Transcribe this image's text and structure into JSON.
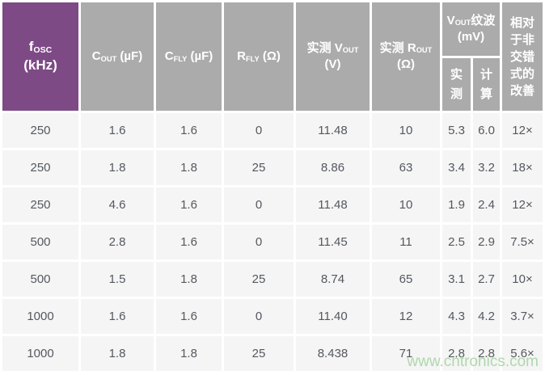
{
  "chart_data": {
    "type": "table",
    "columns": [
      "fOSC (kHz)",
      "COUT (µF)",
      "CFLY (µF)",
      "RFLY (Ω)",
      "实测 VOUT (V)",
      "实测 ROUT (Ω)",
      "VOUT纹波 (mV) 实测",
      "VOUT纹波 (mV) 计算",
      "相对于非交错式的改善"
    ],
    "rows": [
      [
        "250",
        "1.6",
        "1.6",
        "0",
        "11.48",
        "10",
        "5.3",
        "6.0",
        "12×"
      ],
      [
        "250",
        "1.8",
        "1.8",
        "25",
        "8.86",
        "63",
        "3.4",
        "3.2",
        "18×"
      ],
      [
        "250",
        "4.6",
        "1.6",
        "0",
        "11.48",
        "10",
        "1.9",
        "2.4",
        "12×"
      ],
      [
        "500",
        "2.8",
        "1.6",
        "0",
        "11.45",
        "11",
        "2.5",
        "2.9",
        "7.5×"
      ],
      [
        "500",
        "1.5",
        "1.8",
        "25",
        "8.74",
        "65",
        "3.1",
        "2.7",
        "10×"
      ],
      [
        "1000",
        "1.6",
        "1.6",
        "0",
        "11.40",
        "12",
        "4.3",
        "4.2",
        "3.7×"
      ],
      [
        "1000",
        "1.8",
        "1.8",
        "25",
        "8.438",
        "71",
        "2.8",
        "2.8",
        "5.6×"
      ]
    ]
  },
  "header": {
    "fosc": {
      "base": "f",
      "sub": "OSC",
      "unit": "(kHz)"
    },
    "cout": {
      "base": "C",
      "sub": "OUT",
      "unit": " (µF)"
    },
    "cfly": {
      "base": "C",
      "sub": "FLY",
      "unit": " (µF)"
    },
    "rfly": {
      "base": "R",
      "sub": "FLY",
      "unit": " (Ω)"
    },
    "vout_meas": {
      "prefix": "实测 V",
      "sub": "OUT",
      "unit": "(V)"
    },
    "rout_meas": {
      "prefix": "实测 R",
      "sub": "OUT",
      "unit": "(Ω)"
    },
    "ripple": {
      "base": "V",
      "sub": "OUT",
      "suffix": "纹波 (mV)",
      "measured": "实测",
      "calculated": "计算"
    },
    "improvement": "相对于非交错式的改善"
  },
  "watermark": "www.cntronics.com",
  "colors": {
    "header_purple": "#7d4a86",
    "header_gray": "#ababab",
    "cell_bg": "#f5f5f5",
    "cell_text": "#54585e",
    "watermark_green": "#a9d4a5"
  }
}
